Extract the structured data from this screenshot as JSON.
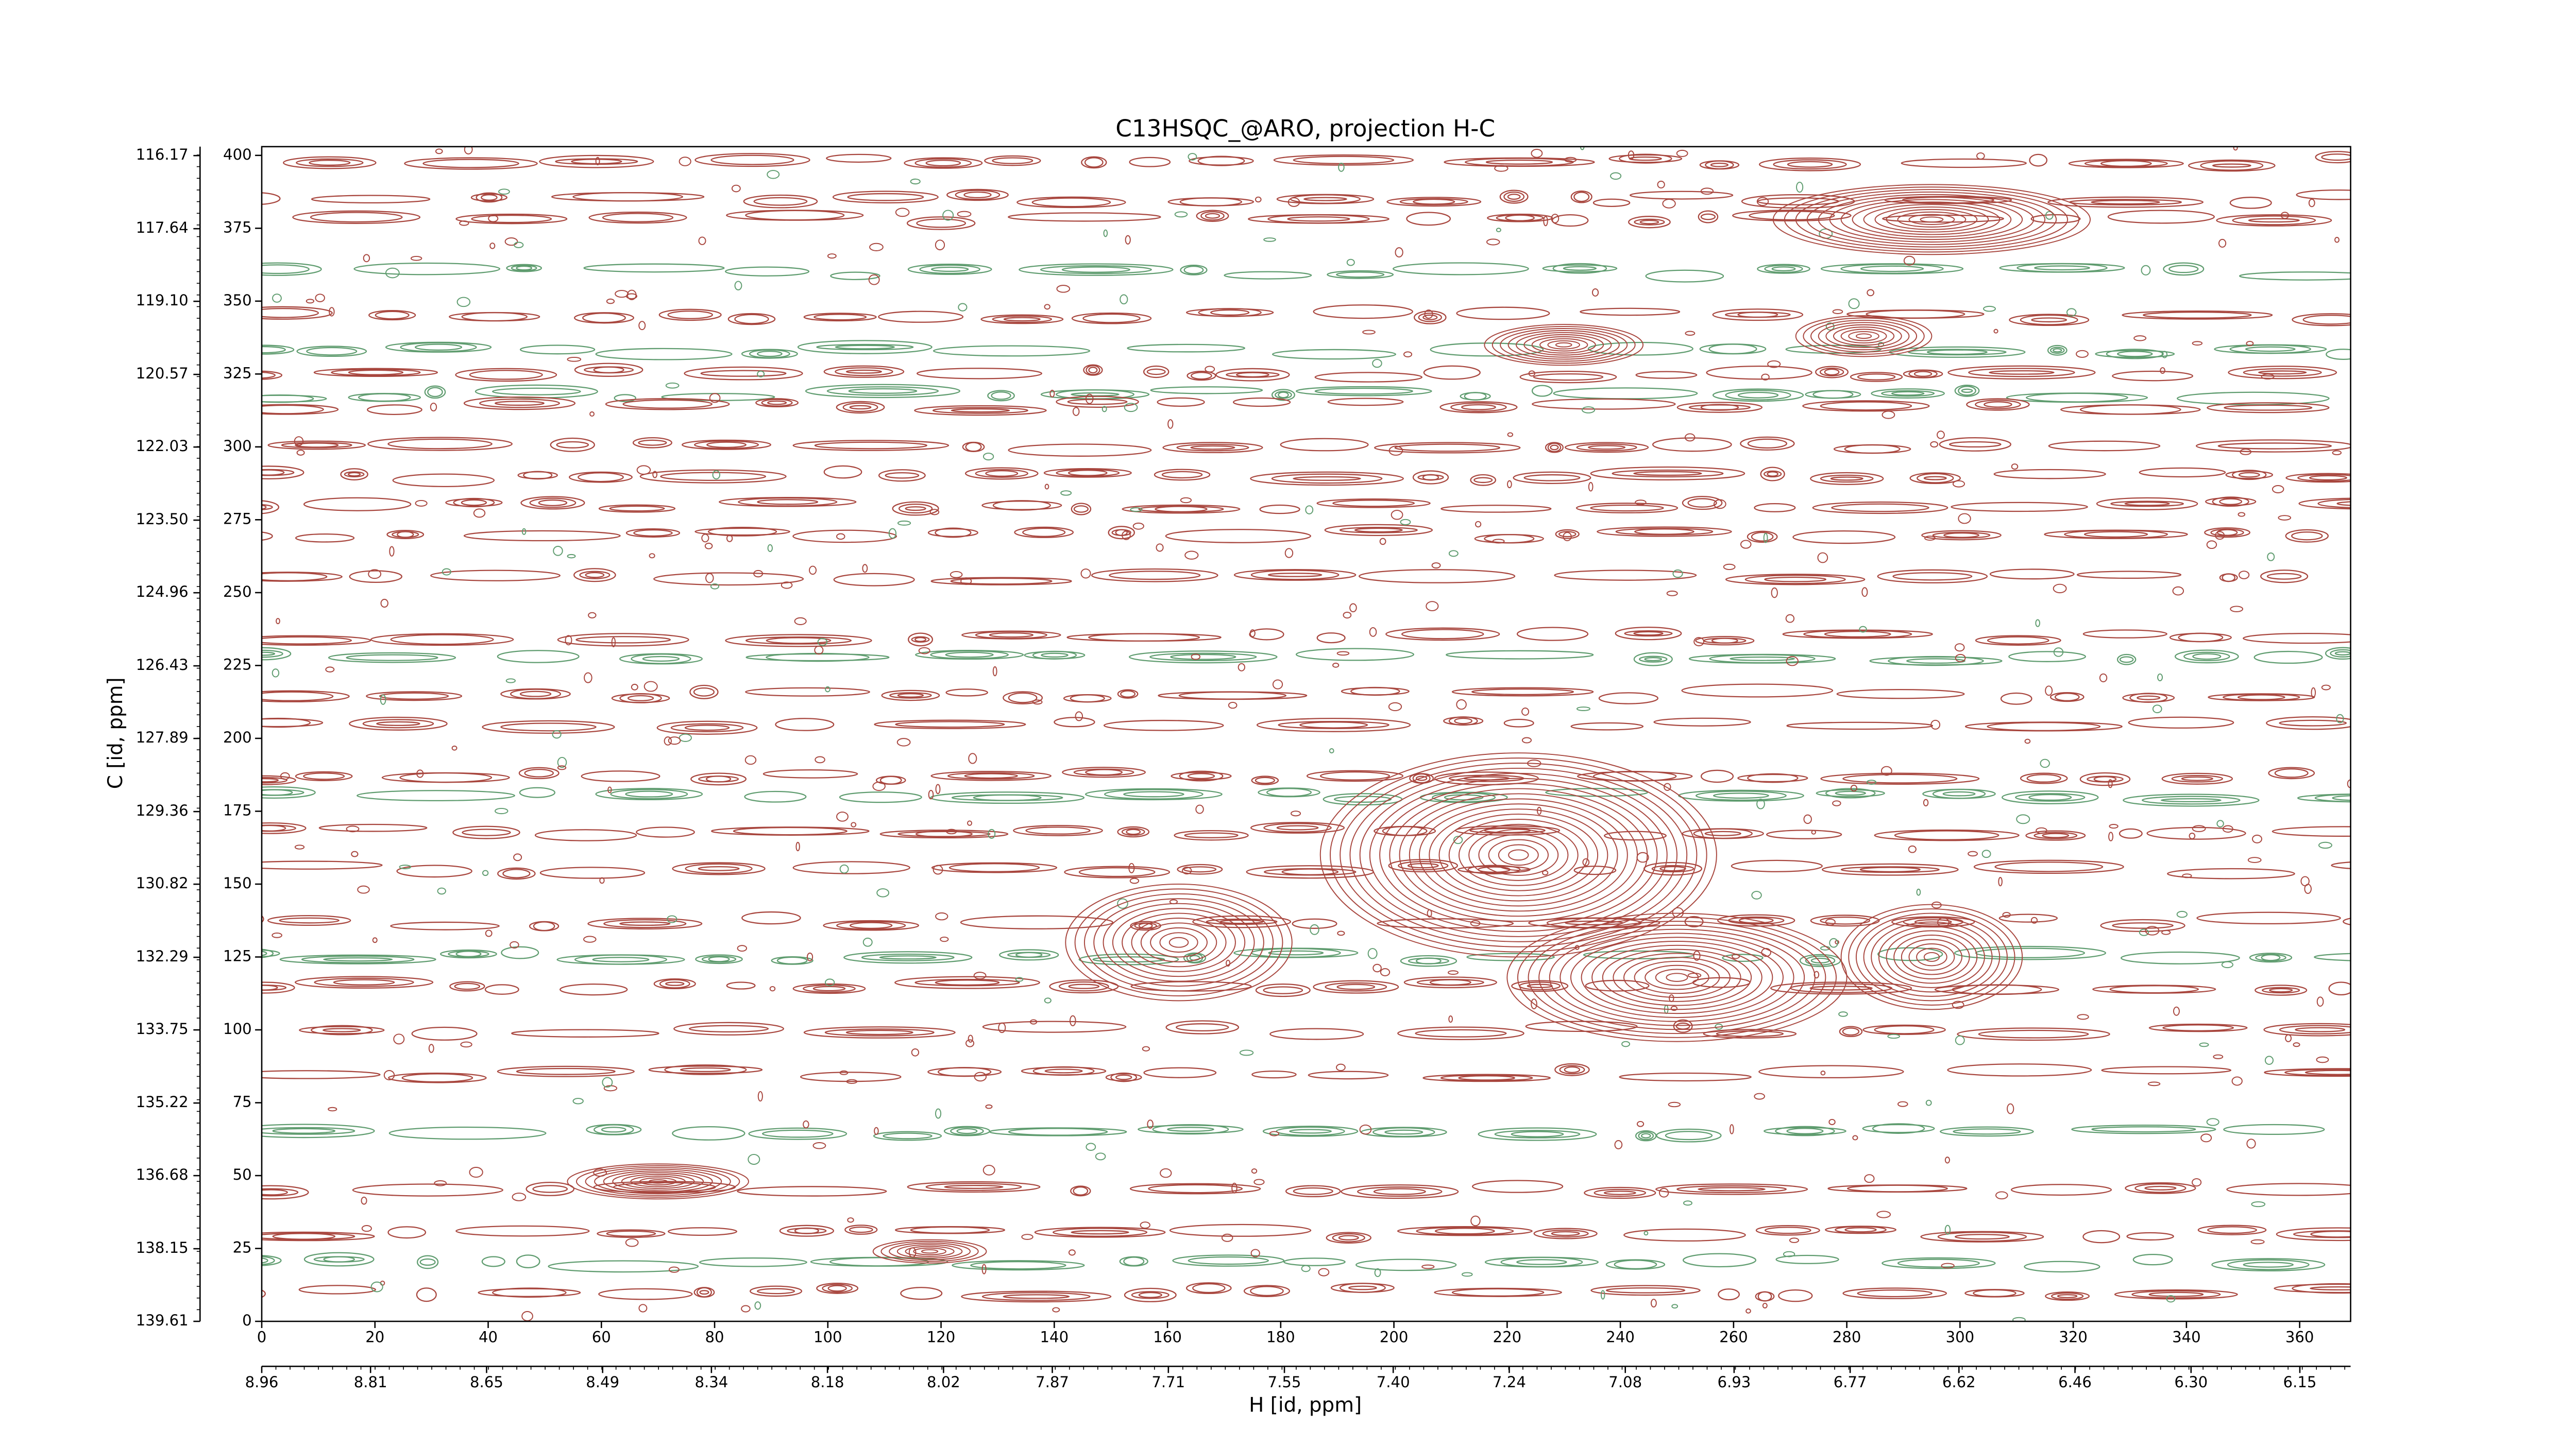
{
  "chart_data": {
    "type": "contour",
    "title": "C13HSQC_@ARO, projection H-C",
    "xlabel": "H [id, ppm]",
    "ylabel": "C [id, ppm]",
    "xlim": [
      0,
      369
    ],
    "ylim": [
      0,
      403
    ],
    "xticks": [
      0,
      20,
      40,
      60,
      80,
      100,
      120,
      140,
      160,
      180,
      200,
      220,
      240,
      260,
      280,
      300,
      320,
      340,
      360
    ],
    "yticks": [
      0,
      25,
      50,
      75,
      100,
      125,
      150,
      175,
      200,
      225,
      250,
      275,
      300,
      325,
      350,
      375,
      400
    ],
    "x2lim": [
      8.96,
      6.08
    ],
    "x2ticks": [
      8.96,
      8.81,
      8.65,
      8.49,
      8.34,
      8.18,
      8.02,
      7.87,
      7.71,
      7.55,
      {
        "value": 7.4,
        "label": "7.40"
      },
      7.24,
      7.08,
      6.93,
      6.77,
      6.62,
      6.46,
      {
        "value": 6.3,
        "label": "6.30"
      },
      6.15
    ],
    "y2lim": [
      139.61,
      115.99
    ],
    "y2ticks": [
      139.61,
      138.15,
      136.68,
      135.22,
      133.75,
      132.29,
      130.82,
      129.36,
      127.89,
      126.43,
      124.96,
      {
        "value": 123.5,
        "label": "123.50"
      },
      122.03,
      120.57,
      {
        "value": 119.1,
        "label": "119.10"
      },
      117.64,
      116.17
    ],
    "colors": {
      "positive": "#a8463e",
      "negative": "#5f9c6f"
    }
  }
}
